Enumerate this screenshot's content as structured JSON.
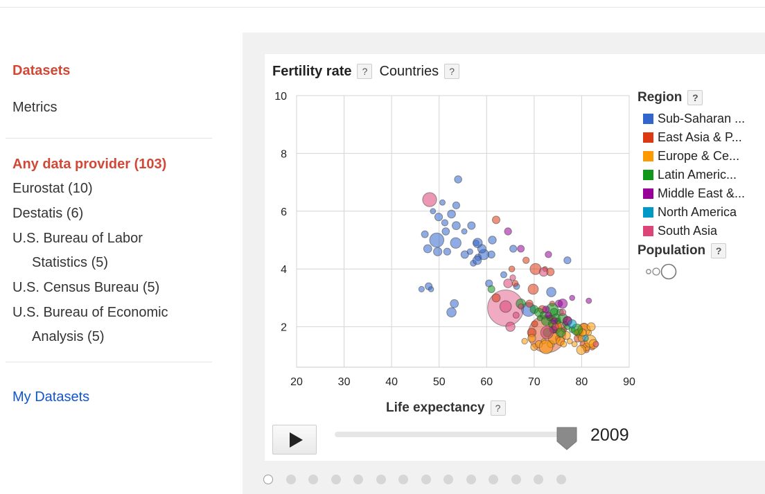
{
  "sidebar": {
    "datasets_label": "Datasets",
    "metrics_label": "Metrics",
    "providers_heading": "Any data provider (103)",
    "providers": [
      {
        "line1": "Eurostat (10)"
      },
      {
        "line1": "Destatis (6)"
      },
      {
        "line1": "U.S. Bureau of Labor",
        "line2": "Statistics (5)"
      },
      {
        "line1": "U.S. Census Bureau (5)"
      },
      {
        "line1": "U.S. Bureau of Economic",
        "line2": "Analysis (5)"
      }
    ],
    "my_datasets_label": "My Datasets"
  },
  "chart": {
    "metric_label": "Fertility rate",
    "dimension_label": "Countries",
    "help_glyph": "?",
    "x_axis_label": "Life expectancy",
    "legend": {
      "region_title": "Region",
      "regions": [
        {
          "label": "Sub-Saharan ...",
          "color": "#3366cc"
        },
        {
          "label": "East Asia & P...",
          "color": "#dc3912"
        },
        {
          "label": "Europe & Ce...",
          "color": "#ff9900"
        },
        {
          "label": "Latin Americ...",
          "color": "#109618"
        },
        {
          "label": "Middle East &...",
          "color": "#990099"
        },
        {
          "label": "North America",
          "color": "#0099c6"
        },
        {
          "label": "South Asia",
          "color": "#dd4477"
        }
      ],
      "population_title": "Population"
    },
    "play_icon": "play-icon",
    "year": "2009"
  },
  "chart_data": {
    "type": "scatter",
    "xlabel": "Life expectancy",
    "ylabel": "Fertility rate",
    "xlim": [
      20,
      90
    ],
    "ylim": [
      0.6,
      10
    ],
    "x_ticks": [
      20,
      30,
      40,
      50,
      60,
      70,
      80,
      90
    ],
    "y_ticks": [
      2,
      4,
      6,
      8,
      10
    ],
    "grid": true,
    "legend_position": "right",
    "year": 2009,
    "series": [
      {
        "name": "Sub-Saharan ...",
        "points": [
          [
            54.0,
            7.1
          ],
          [
            50.7,
            6.3
          ],
          [
            53.6,
            6.2
          ],
          [
            48.7,
            6.0
          ],
          [
            49.9,
            5.8
          ],
          [
            51.2,
            5.6
          ],
          [
            52.6,
            5.9
          ],
          [
            51.4,
            5.3
          ],
          [
            53.6,
            5.5
          ],
          [
            56.8,
            5.5
          ],
          [
            57.8,
            4.9
          ],
          [
            49.5,
            5.0
          ],
          [
            55.3,
            5.3
          ],
          [
            58.1,
            4.9
          ],
          [
            47.0,
            5.2
          ],
          [
            47.6,
            4.7
          ],
          [
            53.5,
            4.9
          ],
          [
            51.7,
            4.6
          ],
          [
            55.4,
            4.5
          ],
          [
            56.5,
            4.6
          ],
          [
            58.2,
            4.4
          ],
          [
            59.4,
            4.5
          ],
          [
            57.2,
            4.2
          ],
          [
            61.0,
            4.5
          ],
          [
            61.2,
            5.0
          ],
          [
            58.0,
            4.3
          ],
          [
            46.3,
            3.3
          ],
          [
            47.8,
            3.4
          ],
          [
            48.3,
            3.3
          ],
          [
            53.2,
            2.8
          ],
          [
            52.6,
            2.5
          ],
          [
            65.6,
            4.7
          ],
          [
            77.0,
            4.3
          ],
          [
            60.5,
            3.5
          ],
          [
            66.3,
            3.4
          ],
          [
            49.7,
            4.6
          ],
          [
            63.6,
            3.8
          ],
          [
            68.8,
            2.6
          ],
          [
            73.6,
            3.2
          ],
          [
            59.0,
            4.7
          ]
        ]
      },
      {
        "name": "East Asia & P...",
        "points": [
          [
            62.0,
            5.7
          ],
          [
            68.3,
            4.3
          ],
          [
            65.3,
            4.0
          ],
          [
            62.0,
            3.0
          ],
          [
            70.3,
            4.0
          ],
          [
            72.3,
            4.0
          ],
          [
            73.4,
            3.9
          ],
          [
            69.8,
            3.3
          ],
          [
            69.0,
            2.8
          ],
          [
            71.7,
            2.6
          ],
          [
            73.5,
            2.3
          ],
          [
            74.7,
            2.0
          ],
          [
            76.3,
            1.9
          ],
          [
            79.5,
            1.8
          ],
          [
            80.5,
            1.4
          ],
          [
            82.2,
            1.3
          ],
          [
            81.0,
            1.2
          ],
          [
            75.0,
            1.6
          ],
          [
            79.2,
            1.6
          ],
          [
            77.0,
            2.2
          ],
          [
            80.5,
            2.0
          ],
          [
            70.1,
            2.1
          ],
          [
            73.8,
            2.8
          ],
          [
            66.0,
            3.5
          ],
          [
            69.5,
            1.8
          ]
        ]
      },
      {
        "name": "Europe & Ce...",
        "points": [
          [
            68.0,
            1.5
          ],
          [
            69.5,
            1.6
          ],
          [
            70.0,
            1.3
          ],
          [
            71.0,
            1.4
          ],
          [
            72.0,
            1.5
          ],
          [
            73.5,
            1.4
          ],
          [
            74.2,
            1.6
          ],
          [
            75.5,
            1.5
          ],
          [
            76.2,
            1.4
          ],
          [
            77.5,
            1.5
          ],
          [
            78.5,
            1.4
          ],
          [
            79.0,
            1.8
          ],
          [
            79.5,
            1.7
          ],
          [
            80.0,
            1.6
          ],
          [
            80.5,
            1.9
          ],
          [
            81.0,
            1.3
          ],
          [
            81.5,
            1.8
          ],
          [
            82.0,
            2.0
          ],
          [
            79.9,
            1.2
          ],
          [
            81.8,
            1.5
          ],
          [
            82.5,
            1.4
          ],
          [
            80.2,
            1.8
          ],
          [
            72.5,
            1.3
          ],
          [
            74.5,
            2.0
          ],
          [
            76.8,
            1.7
          ]
        ]
      },
      {
        "name": "Latin Americ...",
        "points": [
          [
            61.0,
            3.3
          ],
          [
            67.2,
            2.8
          ],
          [
            70.0,
            2.6
          ],
          [
            71.0,
            2.5
          ],
          [
            72.0,
            2.4
          ],
          [
            72.5,
            2.2
          ],
          [
            73.2,
            2.3
          ],
          [
            73.8,
            2.6
          ],
          [
            74.2,
            2.5
          ],
          [
            74.6,
            2.3
          ],
          [
            75.0,
            2.2
          ],
          [
            75.5,
            2.5
          ],
          [
            76.0,
            2.3
          ],
          [
            76.5,
            2.1
          ],
          [
            77.0,
            2.0
          ],
          [
            78.0,
            1.9
          ],
          [
            79.0,
            1.9
          ],
          [
            73.8,
            2.1
          ],
          [
            72.8,
            1.8
          ],
          [
            74.2,
            1.9
          ],
          [
            75.6,
            1.8
          ],
          [
            71.2,
            2.3
          ]
        ]
      },
      {
        "name": "Middle East &...",
        "points": [
          [
            64.5,
            5.3
          ],
          [
            67.2,
            4.7
          ],
          [
            73.0,
            4.5
          ],
          [
            78.0,
            3.0
          ],
          [
            75.2,
            2.8
          ],
          [
            76.0,
            2.8
          ],
          [
            72.5,
            2.6
          ],
          [
            74.2,
            2.2
          ],
          [
            81.5,
            2.9
          ],
          [
            77.0,
            2.2
          ],
          [
            74.0,
            1.9
          ],
          [
            73.0,
            2.4
          ]
        ]
      },
      {
        "name": "North America",
        "points": [
          [
            78.0,
            2.1
          ],
          [
            80.8,
            1.6
          ]
        ]
      },
      {
        "name": "South Asia",
        "points": [
          [
            48.0,
            6.4
          ],
          [
            64.0,
            2.7
          ],
          [
            64.5,
            3.5
          ],
          [
            67.2,
            2.7
          ],
          [
            65.5,
            3.7
          ],
          [
            72.7,
            1.8
          ],
          [
            66.2,
            2.4
          ],
          [
            76.0,
            2.5
          ],
          [
            65.0,
            2.0
          ],
          [
            72.0,
            3.9
          ],
          [
            74.5,
            2.0
          ],
          [
            83.0,
            1.4
          ]
        ]
      }
    ],
    "big_bubbles": [
      {
        "series": "South Asia",
        "x": 64.0,
        "y": 2.65
      },
      {
        "series": "East Asia & P...",
        "x": 72.7,
        "y": 1.75
      }
    ]
  }
}
